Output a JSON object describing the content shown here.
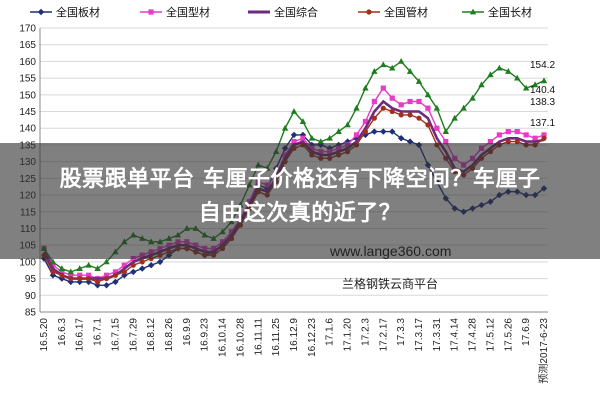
{
  "chart_data": {
    "type": "line",
    "ylim": [
      85,
      170
    ],
    "yticks": [
      85,
      90,
      95,
      100,
      105,
      110,
      115,
      120,
      125,
      130,
      135,
      140,
      145,
      150,
      155,
      160,
      165,
      170
    ],
    "categories": [
      "16.5.20",
      "",
      "16.6.3",
      "",
      "16.6.17",
      "",
      "16.7.1",
      "",
      "16.7.15",
      "",
      "16.7.29",
      "",
      "16.8.12",
      "",
      "16.8.26",
      "",
      "16.9.9",
      "",
      "16.9.23",
      "",
      "16.10.14",
      "",
      "16.10.28",
      "",
      "16.11.11",
      "",
      "16.11.25",
      "",
      "16.12.9",
      "",
      "16.12.23",
      "",
      "17.1.6",
      "",
      "17.1.20",
      "",
      "17.2.3",
      "",
      "17.2.17",
      "",
      "17.3.3",
      "",
      "17.3.17",
      "",
      "17.3.31",
      "",
      "17.4.14",
      "",
      "17.4.28",
      "",
      "17.5.12",
      "",
      "17.5.26",
      "",
      "17.6.9",
      "",
      "预测2017-6-23"
    ],
    "series": [
      {
        "name": "全国板材",
        "color": "#1f2f7a",
        "marker": "diamond",
        "values": [
          101,
          96,
          95,
          94,
          94,
          94,
          93,
          93,
          94,
          96,
          97,
          98,
          99,
          100,
          102,
          104,
          104,
          103,
          102,
          103,
          105,
          108,
          112,
          118,
          123,
          122,
          128,
          134,
          138,
          138,
          135,
          135,
          134,
          135,
          136,
          137,
          138,
          139,
          139,
          139,
          137,
          136,
          135,
          129,
          124,
          119,
          116,
          115,
          116,
          117,
          118,
          120,
          121,
          121,
          120,
          120,
          122
        ]
      },
      {
        "name": "全国型材",
        "color": "#e63cc8",
        "marker": "square",
        "values": [
          104,
          99,
          97,
          96,
          96,
          96,
          95,
          96,
          97,
          99,
          101,
          102,
          103,
          104,
          105,
          106,
          106,
          105,
          104,
          104,
          106,
          109,
          113,
          118,
          124,
          123,
          126,
          132,
          136,
          137,
          134,
          133,
          133,
          134,
          135,
          138,
          142,
          148,
          152,
          149,
          147,
          148,
          148,
          146,
          140,
          136,
          131,
          129,
          131,
          134,
          136,
          138,
          139,
          139,
          138,
          137,
          138
        ]
      },
      {
        "name": "全国综合",
        "color": "#6e2a7c",
        "marker": "none",
        "values": [
          103,
          98,
          96,
          95,
          95,
          95,
          95,
          95,
          96,
          98,
          100,
          101,
          102,
          103,
          104,
          105,
          105,
          104,
          103,
          103,
          105,
          108,
          112,
          117,
          122,
          121,
          125,
          131,
          135,
          136,
          133,
          132,
          132,
          133,
          134,
          136,
          140,
          145,
          148,
          146,
          145,
          145,
          145,
          143,
          137,
          133,
          128,
          127,
          129,
          132,
          134,
          136,
          137,
          137,
          136,
          136,
          136.5
        ]
      },
      {
        "name": "全国管材",
        "color": "#a0301d",
        "marker": "circle",
        "values": [
          102,
          97,
          96,
          95,
          95,
          95,
          94,
          95,
          96,
          97,
          99,
          100,
          101,
          102,
          103,
          104,
          104,
          103,
          102,
          102,
          104,
          107,
          111,
          116,
          121,
          120,
          124,
          130,
          134,
          135,
          132,
          131,
          131,
          132,
          133,
          135,
          139,
          143,
          146,
          145,
          144,
          144,
          143,
          141,
          135,
          131,
          127,
          126,
          128,
          131,
          133,
          135,
          136,
          136,
          135,
          135,
          137
        ]
      },
      {
        "name": "全国长材",
        "color": "#1e7d1e",
        "marker": "triangle",
        "values": [
          104,
          100,
          98,
          97,
          98,
          99,
          98,
          100,
          103,
          106,
          108,
          107,
          106,
          106,
          107,
          108,
          110,
          110,
          108,
          107,
          109,
          112,
          117,
          123,
          129,
          128,
          133,
          140,
          145,
          142,
          137,
          136,
          137,
          139,
          141,
          146,
          152,
          157,
          159,
          158,
          160,
          157,
          154,
          150,
          146,
          139,
          143,
          146,
          149,
          153,
          156,
          158,
          157,
          155,
          152,
          153,
          154.2
        ]
      }
    ],
    "annotations": [
      "154.2",
      "140.4",
      "138.3",
      "137.1"
    ]
  },
  "headline_lines": [
    "股票跟单平台 车厘子价格还有下降空间？车厘子",
    "自由这次真的近了？"
  ],
  "watermark": {
    "url": "www.lange360.com",
    "name": "兰格钢铁云商平台"
  }
}
